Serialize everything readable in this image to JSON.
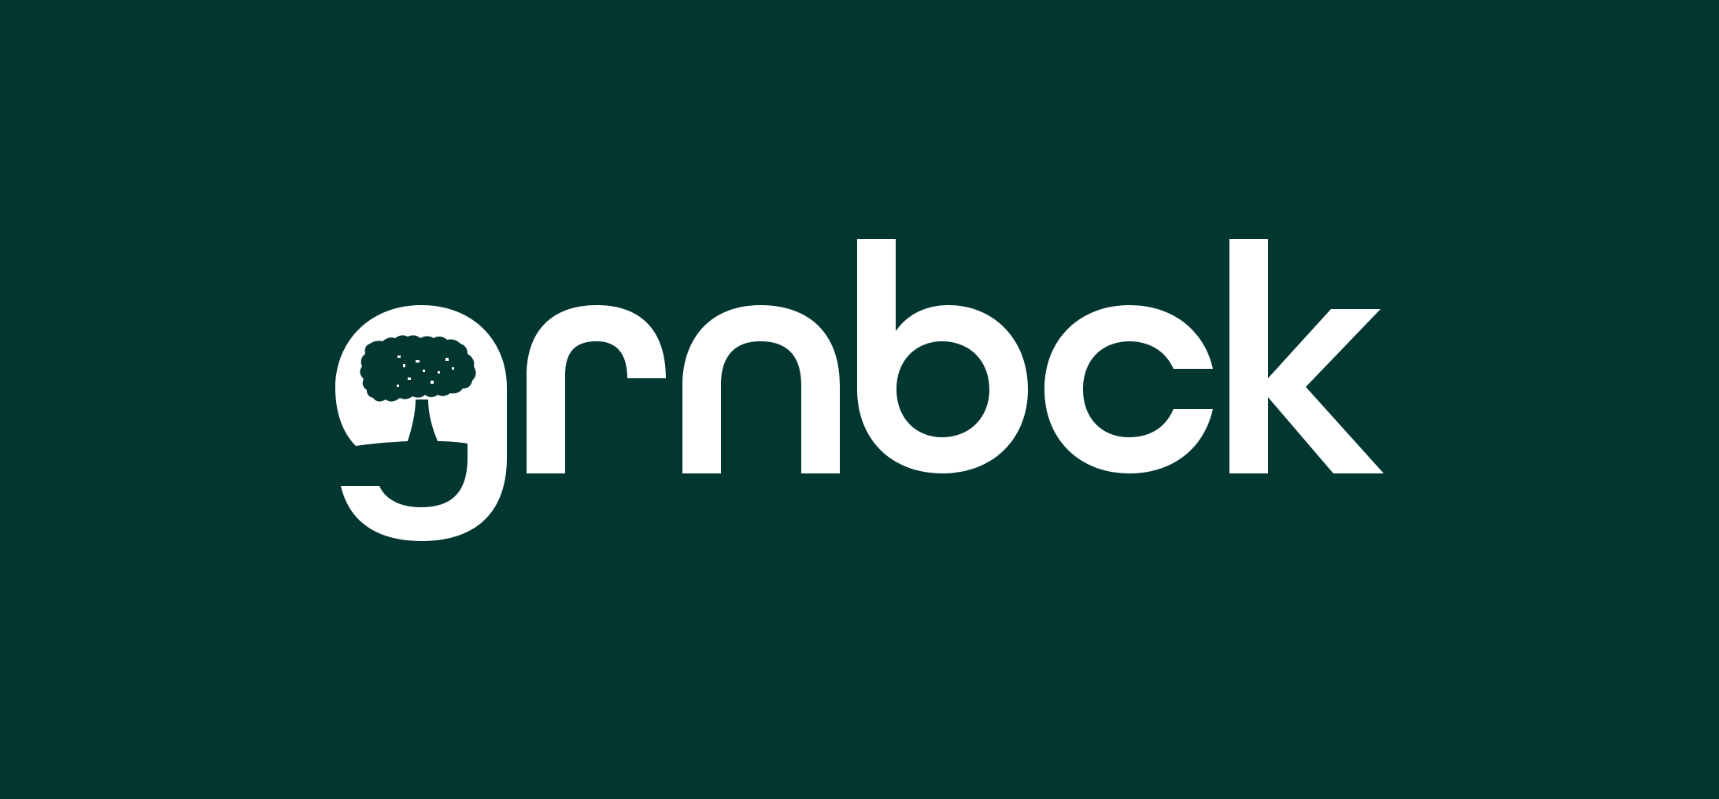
{
  "brand": {
    "wordmark": "grnbck",
    "background_color": "#023631",
    "foreground_color": "#ffffff",
    "emblem_icon": "tree-icon"
  }
}
